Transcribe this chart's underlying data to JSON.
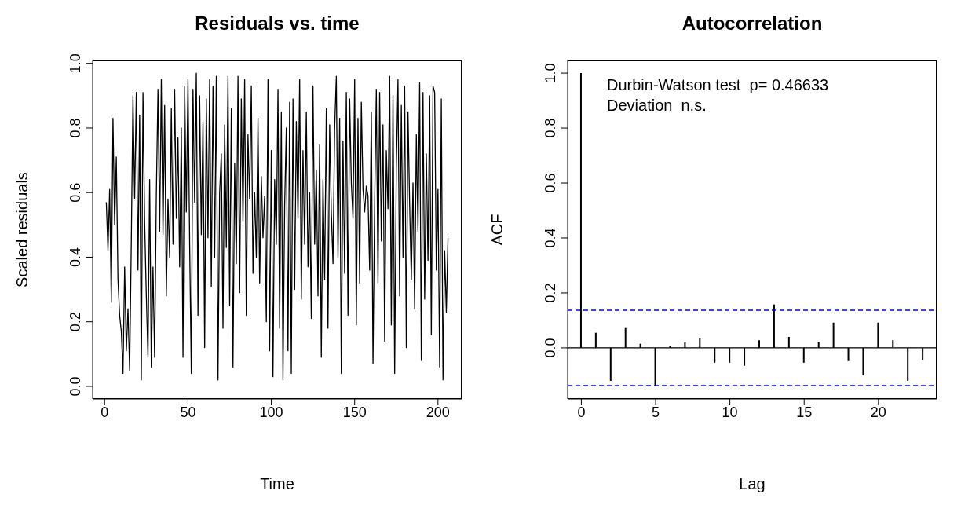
{
  "chart_data": [
    {
      "type": "line",
      "title": "Residuals vs. time",
      "xlabel": "Time",
      "ylabel": "Scaled residuals",
      "marker": "none",
      "line_style": "solid",
      "grid": false,
      "xlim": [
        -7.2,
        214.2
      ],
      "xticks": [
        0,
        50,
        100,
        150,
        200
      ],
      "ylim": [
        -0.039,
        1.009
      ],
      "yticks": [
        {
          "value": 0,
          "label": "0.0"
        },
        {
          "value": 0.2,
          "label": "0.2"
        },
        {
          "value": 0.4,
          "label": "0.4"
        },
        {
          "value": 0.6,
          "label": "0.6"
        },
        {
          "value": 0.8,
          "label": "0.8"
        },
        {
          "value": 1,
          "label": "1.0"
        }
      ],
      "x": [
        1,
        2,
        3,
        4,
        5,
        6,
        7,
        8,
        9,
        10,
        11,
        12,
        13,
        14,
        15,
        16,
        17,
        18,
        19,
        20,
        21,
        22,
        23,
        24,
        25,
        26,
        27,
        28,
        29,
        30,
        31,
        32,
        33,
        34,
        35,
        36,
        37,
        38,
        39,
        40,
        41,
        42,
        43,
        44,
        45,
        46,
        47,
        48,
        49,
        50,
        51,
        52,
        53,
        54,
        55,
        56,
        57,
        58,
        59,
        60,
        61,
        62,
        63,
        64,
        65,
        66,
        67,
        68,
        69,
        70,
        71,
        72,
        73,
        74,
        75,
        76,
        77,
        78,
        79,
        80,
        81,
        82,
        83,
        84,
        85,
        86,
        87,
        88,
        89,
        90,
        91,
        92,
        93,
        94,
        95,
        96,
        97,
        98,
        99,
        100,
        101,
        102,
        103,
        104,
        105,
        106,
        107,
        108,
        109,
        110,
        111,
        112,
        113,
        114,
        115,
        116,
        117,
        118,
        119,
        120,
        121,
        122,
        123,
        124,
        125,
        126,
        127,
        128,
        129,
        130,
        131,
        132,
        133,
        134,
        135,
        136,
        137,
        138,
        139,
        140,
        141,
        142,
        143,
        144,
        145,
        146,
        147,
        148,
        149,
        150,
        151,
        152,
        153,
        154,
        155,
        156,
        157,
        158,
        159,
        160,
        161,
        162,
        163,
        164,
        165,
        166,
        167,
        168,
        169,
        170,
        171,
        172,
        173,
        174,
        175,
        176,
        177,
        178,
        179,
        180,
        181,
        182,
        183,
        184,
        185,
        186,
        187,
        188,
        189,
        190,
        191,
        192,
        193,
        194,
        195,
        196,
        197,
        198,
        199,
        200,
        201,
        202,
        203,
        204,
        205,
        206
      ],
      "series": [
        {
          "color": "#000000",
          "values": [
            0.57,
            0.42,
            0.61,
            0.26,
            0.83,
            0.5,
            0.71,
            0.33,
            0.22,
            0.17,
            0.04,
            0.37,
            0.11,
            0.24,
            0.05,
            0.45,
            0.9,
            0.58,
            0.91,
            0.36,
            0.84,
            0.02,
            0.91,
            0.51,
            0.28,
            0.09,
            0.64,
            0.06,
            0.37,
            0.09,
            0.59,
            0.92,
            0.48,
            0.95,
            0.47,
            0.87,
            0.28,
            0.58,
            0.4,
            0.86,
            0.44,
            0.92,
            0.52,
            0.77,
            0.37,
            0.8,
            0.09,
            0.93,
            0.54,
            0.95,
            0.44,
            0.04,
            0.92,
            0.57,
            0.97,
            0.22,
            0.9,
            0.47,
            0.82,
            0.12,
            0.89,
            0.46,
            0.95,
            0.31,
            0.93,
            0.4,
            0.96,
            0.02,
            0.6,
            0.72,
            0.18,
            0.81,
            0.43,
            0.96,
            0.25,
            0.86,
            0.06,
            0.69,
            0.38,
            0.96,
            0.29,
            0.89,
            0.51,
            0.95,
            0.22,
            0.78,
            0.58,
            0.93,
            0.35,
            0.6,
            0.4,
            0.83,
            0.32,
            0.65,
            0.46,
            0.59,
            0.2,
            0.95,
            0.11,
            0.73,
            0.03,
            0.64,
            0.44,
            0.92,
            0.18,
            0.85,
            0.02,
            0.56,
            0.8,
            0.11,
            0.88,
            0.04,
            0.89,
            0.3,
            0.82,
            0.52,
            0.95,
            0.27,
            0.73,
            0.44,
            0.85,
            0.37,
            0.6,
            0.21,
            0.93,
            0.44,
            0.67,
            0.28,
            0.75,
            0.09,
            0.64,
            0.33,
            0.86,
            0.18,
            0.81,
            0.54,
            0.38,
            0.8,
            0.96,
            0.4,
            0.83,
            0.04,
            0.76,
            0.35,
            0.91,
            0.22,
            0.89,
            0.63,
            0.52,
            0.95,
            0.19,
            0.83,
            0.32,
            0.88,
            0.61,
            0.54,
            0.62,
            0.59,
            0.36,
            0.85,
            0.07,
            0.57,
            0.92,
            0.32,
            0.91,
            0.45,
            0.81,
            0.14,
            0.73,
            0.55,
            0.96,
            0.19,
            0.9,
            0.04,
            0.68,
            0.95,
            0.28,
            0.87,
            0.4,
            0.93,
            0.12,
            0.85,
            0.56,
            0.33,
            0.63,
            0.24,
            0.78,
            0.48,
            0.94,
            0.08,
            0.91,
            0.27,
            0.72,
            0.39,
            0.9,
            0.16,
            0.93,
            0.91,
            0.36,
            0.61,
            0.06,
            0.89,
            0.02,
            0.42,
            0.23,
            0.46
          ]
        }
      ]
    },
    {
      "type": "bar",
      "title": "Autocorrelation",
      "xlabel": "Lag",
      "ylabel": "ACF",
      "grid": false,
      "xlim": [
        -0.92,
        23.92
      ],
      "xticks": [
        0,
        5,
        10,
        15,
        20
      ],
      "ylim": [
        -0.186,
        1.046
      ],
      "yticks": [
        {
          "value": 0,
          "label": "0.0"
        },
        {
          "value": 0.2,
          "label": "0.2"
        },
        {
          "value": 0.4,
          "label": "0.4"
        },
        {
          "value": 0.6,
          "label": "0.6"
        },
        {
          "value": 0.8,
          "label": "0.8"
        },
        {
          "value": 1,
          "label": "1.0"
        }
      ],
      "x": [
        0,
        1,
        2,
        3,
        4,
        5,
        6,
        7,
        8,
        9,
        10,
        11,
        12,
        13,
        14,
        15,
        16,
        17,
        18,
        19,
        20,
        21,
        22,
        23
      ],
      "series": [
        {
          "color": "#000000",
          "values": [
            1.0,
            0.055,
            -0.12,
            0.075,
            0.015,
            -0.14,
            0.008,
            0.02,
            0.035,
            -0.054,
            -0.054,
            -0.065,
            0.028,
            0.158,
            0.04,
            -0.054,
            0.02,
            0.092,
            -0.048,
            -0.1,
            0.092,
            0.028,
            -0.12,
            -0.044
          ]
        }
      ],
      "ref_lines": [
        {
          "axis": "y",
          "value": 0,
          "color": "#000000",
          "line_style": "solid"
        },
        {
          "axis": "y",
          "value": 0.137,
          "color": "#0000ff",
          "line_style": "dashed"
        },
        {
          "axis": "y",
          "value": -0.137,
          "color": "#0000ff",
          "line_style": "dashed"
        }
      ],
      "annotations": [
        "Durbin-Watson test  p= 0.46633",
        "Deviation  n.s."
      ]
    }
  ]
}
